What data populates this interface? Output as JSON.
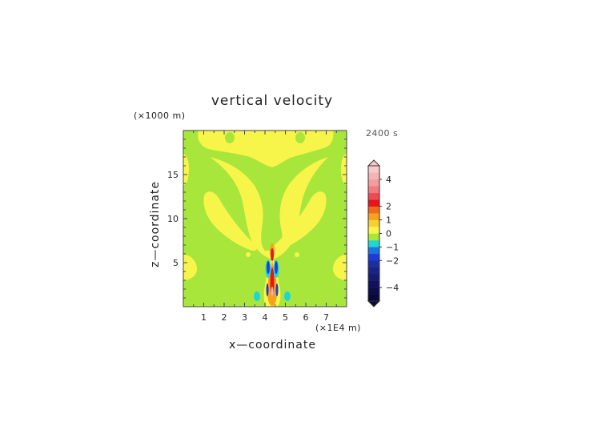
{
  "chart_data": {
    "type": "heatmap",
    "title": "vertical velocity",
    "xlabel": "x—coordinate",
    "ylabel": "z—coordinate",
    "x_units": "(×1E4 m)",
    "z_units": "(×1000 m)",
    "time_label": "2400 s",
    "xlim": [
      0,
      8
    ],
    "ylim": [
      0,
      20
    ],
    "x_ticks": [
      "1",
      "2",
      "3",
      "4",
      "5",
      "6",
      "7"
    ],
    "y_ticks": [
      "5",
      "10",
      "15"
    ],
    "colorbar": {
      "tick_labels": [
        "4",
        "2",
        "1",
        "0",
        "−1",
        "−2",
        "−4"
      ],
      "tick_values": [
        4,
        2,
        1,
        0,
        -1,
        -2,
        -4
      ],
      "min": -5,
      "max": 5
    },
    "colors": {
      "background_field": "#a8e63c",
      "weak_updraft": "#f8f54a",
      "updraft_orange": "#f6a21d",
      "updraft_red": "#e8141c",
      "downdraft_cyan": "#1fd6d6",
      "downdraft_blue": "#1c3cd8",
      "strong_pos": "#f7b4b4",
      "strong_neg": "#0a0a3a"
    }
  }
}
